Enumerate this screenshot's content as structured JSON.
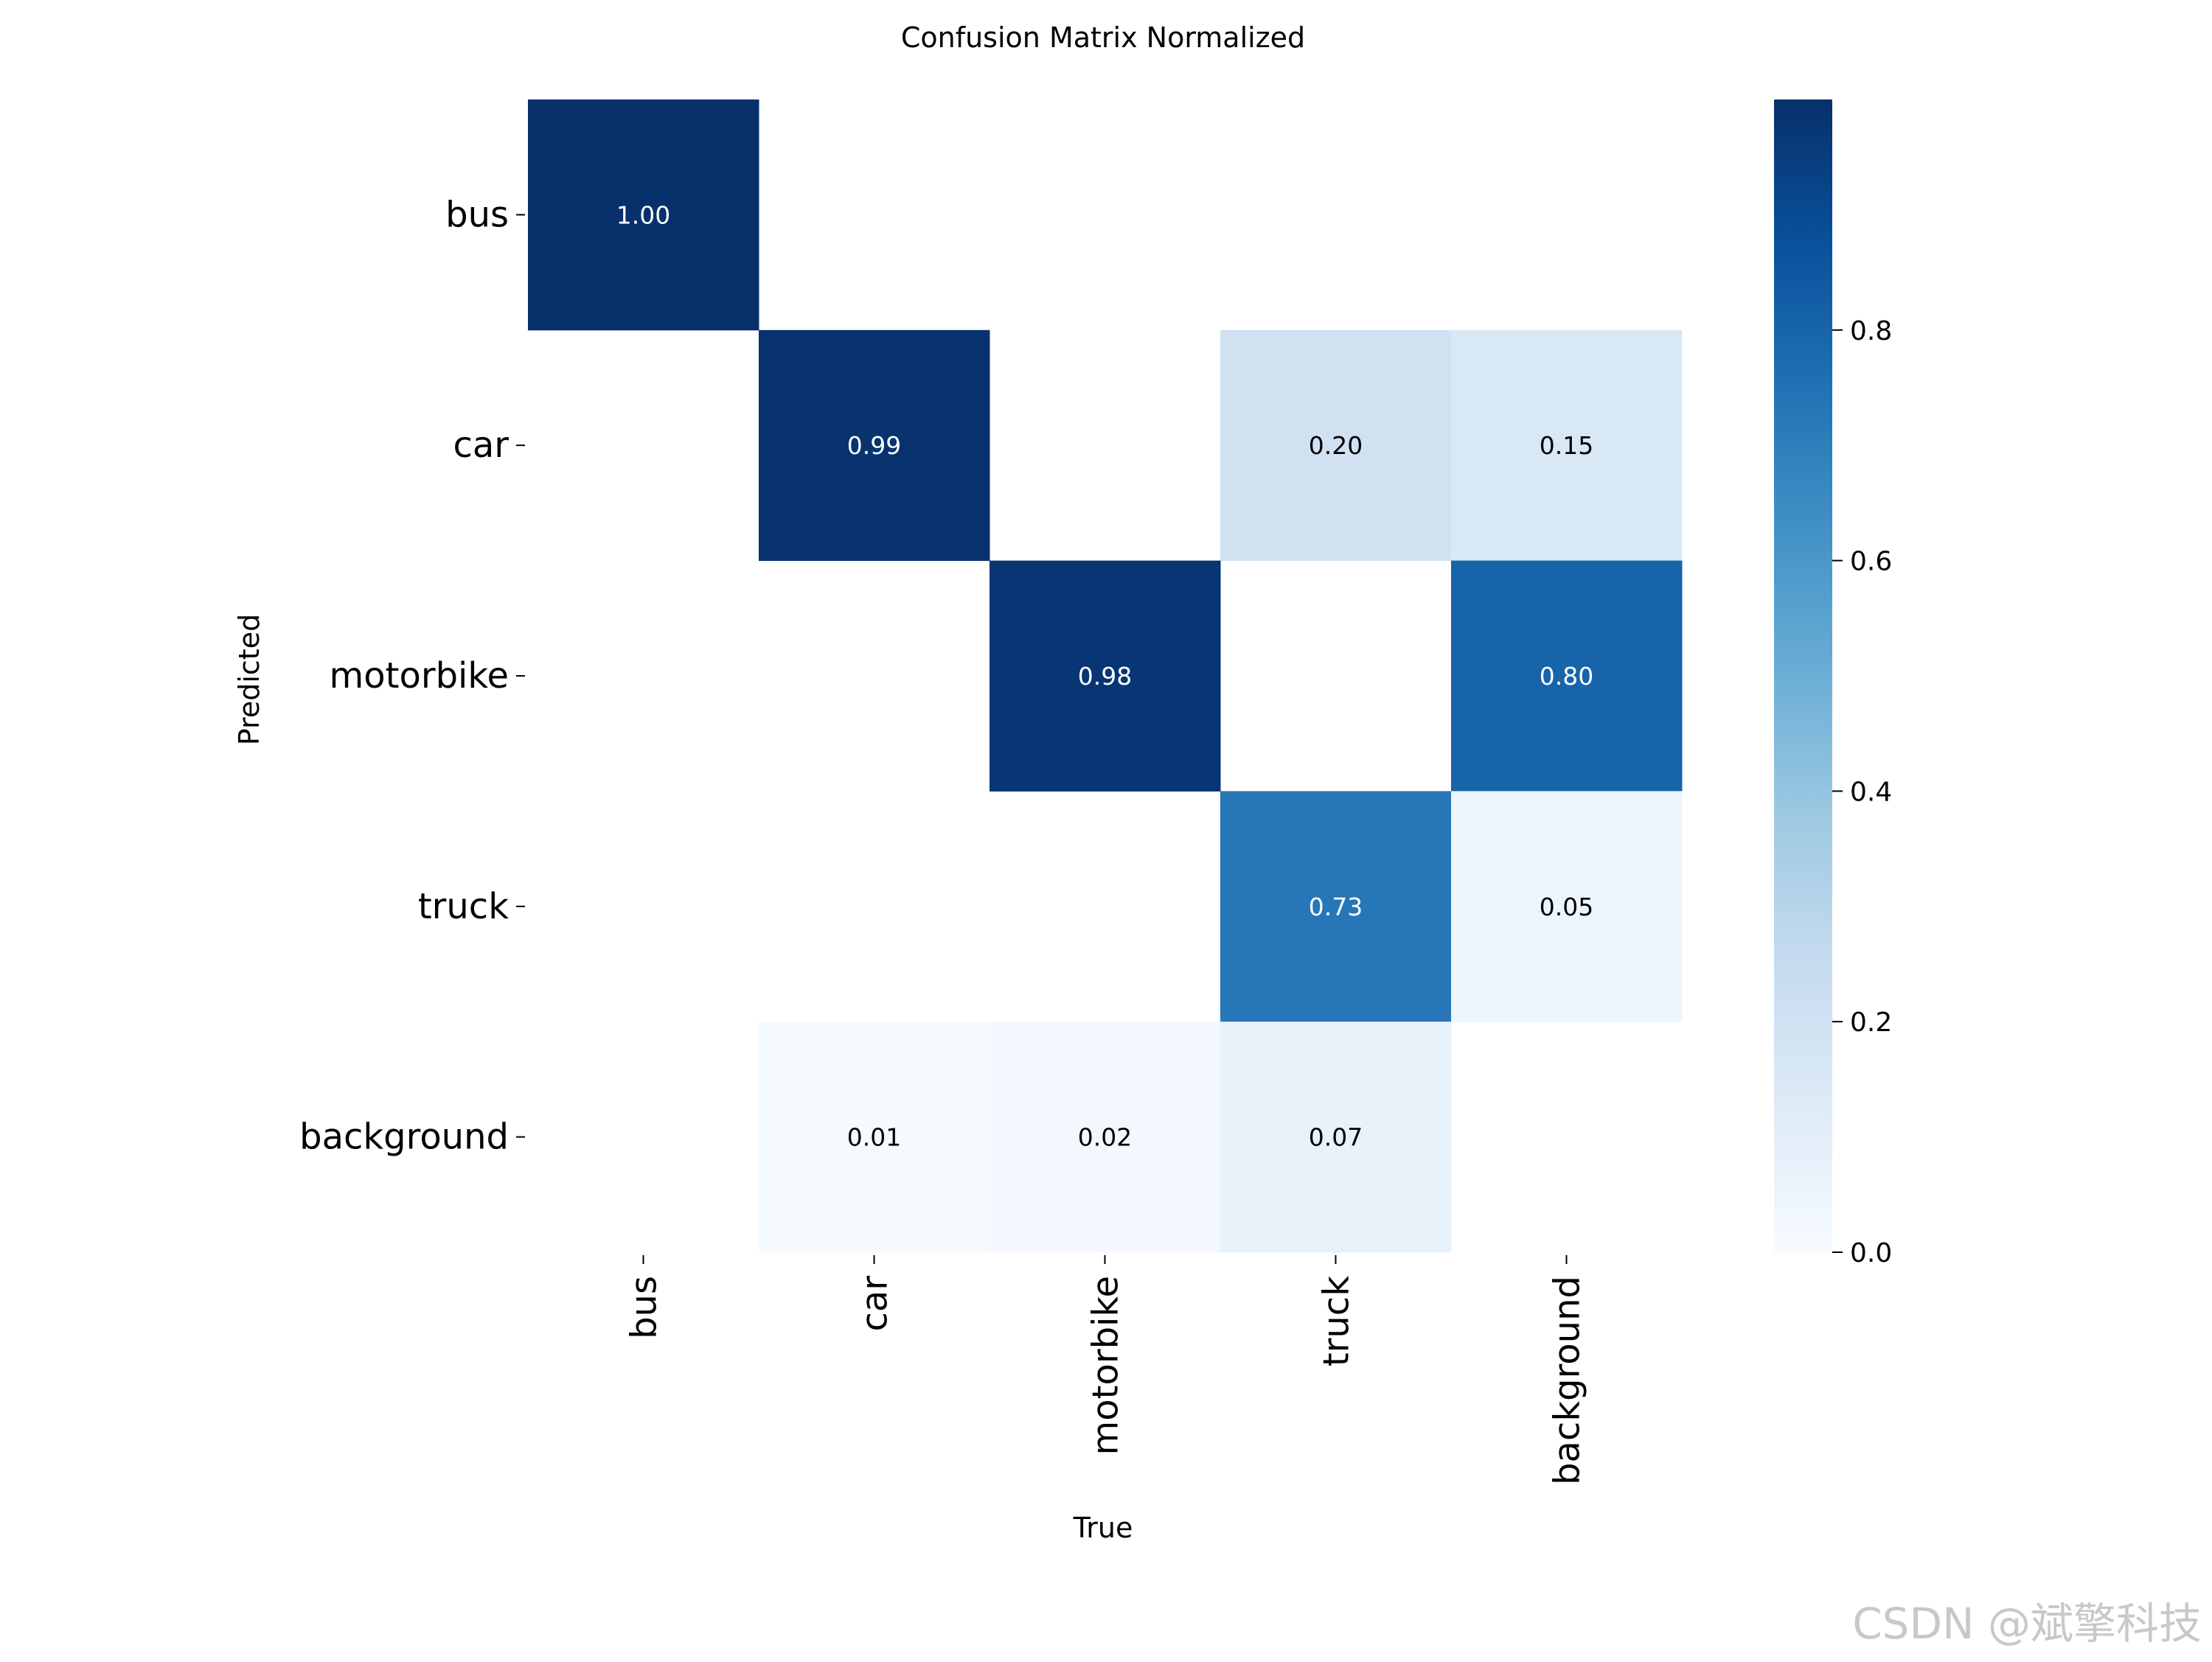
{
  "chart_data": {
    "type": "heatmap",
    "title": "Confusion Matrix Normalized",
    "xlabel": "True",
    "ylabel": "Predicted",
    "x_categories": [
      "bus",
      "car",
      "motorbike",
      "truck",
      "background"
    ],
    "y_categories": [
      "bus",
      "car",
      "motorbike",
      "truck",
      "background"
    ],
    "values": [
      [
        1.0,
        null,
        null,
        null,
        null
      ],
      [
        null,
        0.99,
        null,
        0.2,
        0.15
      ],
      [
        null,
        null,
        0.98,
        null,
        0.8
      ],
      [
        null,
        null,
        null,
        0.73,
        0.05
      ],
      [
        null,
        0.01,
        0.02,
        0.07,
        null
      ]
    ],
    "value_labels": [
      [
        "1.00",
        "",
        "",
        "",
        ""
      ],
      [
        "",
        "0.99",
        "",
        "0.20",
        "0.15"
      ],
      [
        "",
        "",
        "0.98",
        "",
        "0.80"
      ],
      [
        "",
        "",
        "",
        "0.73",
        "0.05"
      ],
      [
        "",
        "0.01",
        "0.02",
        "0.07",
        ""
      ]
    ],
    "colorbar": {
      "range": [
        0.0,
        1.0
      ],
      "ticks": [
        0.0,
        0.2,
        0.4,
        0.6,
        0.8
      ],
      "tick_labels": [
        "0.0",
        "0.2",
        "0.4",
        "0.6",
        "0.8"
      ],
      "colormap": "Blues",
      "colors": [
        "#f7fbff",
        "#deebf7",
        "#c6dbef",
        "#9ecae1",
        "#6baed6",
        "#4292c6",
        "#2171b5",
        "#08519c",
        "#08306b"
      ]
    },
    "grid": false,
    "legend": "none"
  },
  "watermark": "CSDN @斌擎科技"
}
